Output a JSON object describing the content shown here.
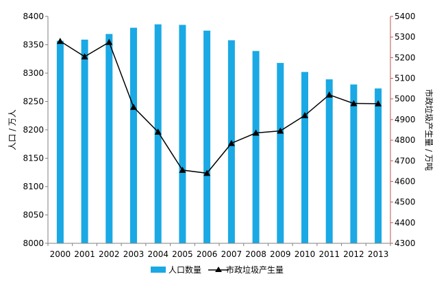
{
  "chart_data": {
    "type": "bar+line",
    "title": "",
    "categories": [
      "2000",
      "2001",
      "2002",
      "2003",
      "2004",
      "2005",
      "2006",
      "2007",
      "2008",
      "2009",
      "2010",
      "2011",
      "2012",
      "2013"
    ],
    "ylabel_left": "人口 / 万人",
    "ylabel_right": "市政垃圾产生量 / 万吨",
    "ylim_left": [
      8000,
      8400
    ],
    "ylim_right": [
      4300,
      5400
    ],
    "yticks_left": [
      8000,
      8050,
      8100,
      8150,
      8200,
      8250,
      8300,
      8350,
      8400
    ],
    "yticks_right": [
      4300,
      4400,
      4500,
      4600,
      4700,
      4800,
      4900,
      5000,
      5100,
      5200,
      5300,
      5400
    ],
    "grid": false,
    "legend_position": "bottom",
    "series": [
      {
        "name": "人口数量",
        "type": "bar",
        "axis": "left",
        "color": "#1aa9e4",
        "values": [
          8357,
          8359,
          8369,
          8380,
          8386,
          8385,
          8375,
          8358,
          8339,
          8318,
          8302,
          8289,
          8280,
          8273
        ]
      },
      {
        "name": "市政垃圾产生量",
        "type": "line",
        "axis": "right",
        "color": "#000000",
        "marker": "triangle",
        "values": [
          5280,
          5205,
          5275,
          4960,
          4840,
          4655,
          4640,
          4785,
          4835,
          4845,
          4920,
          5020,
          4978,
          4977
        ]
      }
    ]
  }
}
